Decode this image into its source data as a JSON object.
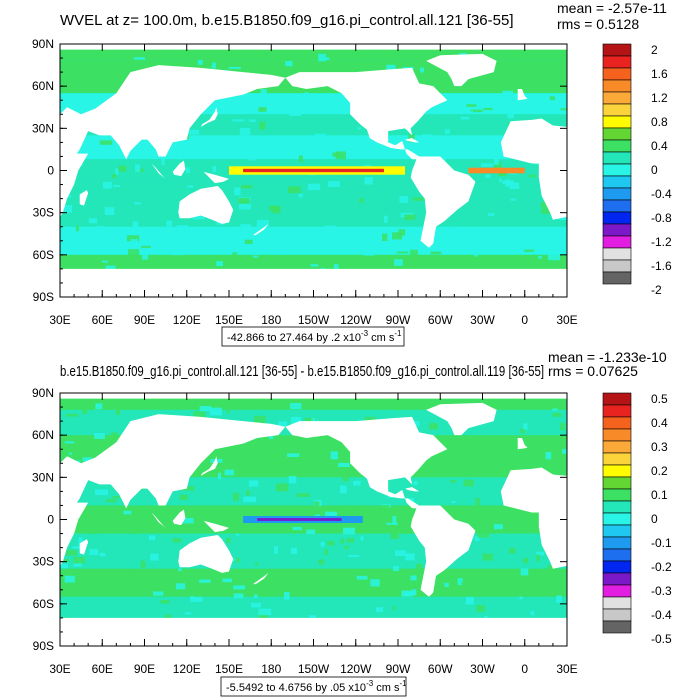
{
  "chart_data": [
    {
      "type": "heatmap",
      "title": "WVEL at z= 100.0m, b.e15.B1850.f09_g16.pi_control.all.121 [36-55]",
      "stats": {
        "mean": "mean = -2.57e-11",
        "rms": "rms = 0.5128"
      },
      "range_text": "-42.866 to 27.464 by .2 x10",
      "range_exp": "-3",
      "range_units": " cm s",
      "range_units_exp": "-1",
      "x_ticks": [
        "30E",
        "60E",
        "90E",
        "120E",
        "150E",
        "180",
        "150W",
        "120W",
        "90W",
        "60W",
        "30W",
        "0",
        "30E"
      ],
      "y_ticks": [
        "90N",
        "60N",
        "30N",
        "0",
        "30S",
        "60S",
        "90S"
      ],
      "xlim": [
        30,
        390
      ],
      "ylim": [
        -90,
        90
      ],
      "levels": [
        "2",
        "1.6",
        "1.2",
        "0.8",
        "0.4",
        "0",
        "-0.4",
        "-0.8",
        "-1.2",
        "-1.6",
        "-2"
      ],
      "colors": [
        "#b41416",
        "#e82320",
        "#f5621d",
        "#f88a28",
        "#fbaa3a",
        "#fbd33a",
        "#fffc00",
        "#64d634",
        "#3ce163",
        "#23e6b9",
        "#28f5e6",
        "#1ec8f0",
        "#1e9bf0",
        "#1e6ef0",
        "#0026f0",
        "#7b18c8",
        "#e11ee1",
        "#e1e1e1",
        "#c8c8c8",
        "#646464"
      ]
    },
    {
      "type": "heatmap",
      "title": "b.e15.B1850.f09_g16.pi_control.all.121 [36-55] - b.e15.B1850.f09_g16.pi_control.all.119 [36-55]",
      "stats": {
        "mean": "mean = -1.233e-10",
        "rms": "rms = 0.07625"
      },
      "range_text": "-5.5492 to 4.6756 by .05 x10",
      "range_exp": "-3",
      "range_units": " cm s",
      "range_units_exp": "-1",
      "x_ticks": [
        "30E",
        "60E",
        "90E",
        "120E",
        "150E",
        "180",
        "150W",
        "120W",
        "90W",
        "60W",
        "30W",
        "0",
        "30E"
      ],
      "y_ticks": [
        "90N",
        "60N",
        "30N",
        "0",
        "30S",
        "60S",
        "90S"
      ],
      "xlim": [
        30,
        390
      ],
      "ylim": [
        -90,
        90
      ],
      "levels": [
        "0.5",
        "0.4",
        "0.3",
        "0.2",
        "0.1",
        "0",
        "-0.1",
        "-0.2",
        "-0.3",
        "-0.4",
        "-0.5"
      ],
      "colors": [
        "#b41416",
        "#e82320",
        "#f5621d",
        "#f88a28",
        "#fbaa3a",
        "#fbd33a",
        "#fffc00",
        "#64d634",
        "#3ce163",
        "#23e6b9",
        "#28f5e6",
        "#1ec8f0",
        "#1e9bf0",
        "#1e6ef0",
        "#0026f0",
        "#7b18c8",
        "#e11ee1",
        "#e1e1e1",
        "#c8c8c8",
        "#646464"
      ]
    }
  ]
}
